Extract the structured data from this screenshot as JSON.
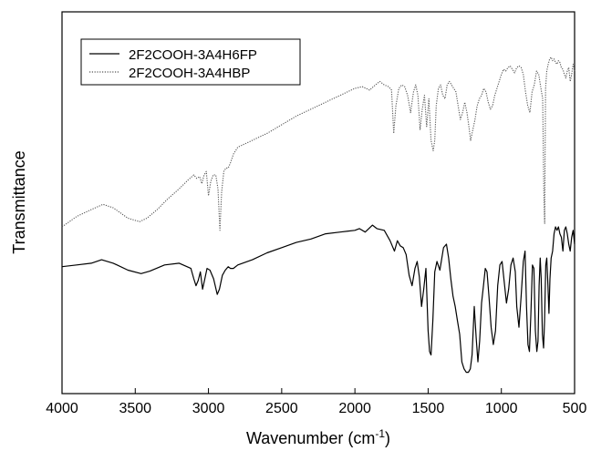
{
  "chart_data": {
    "type": "line",
    "xlabel": "Wavenumber (cm",
    "xlabel_superscript": "-1",
    "xlabel_suffix": ")",
    "ylabel": "Transmittance",
    "xlim": [
      4000,
      500
    ],
    "x_reversed": true,
    "ylim": [
      0,
      1
    ],
    "y_ticks_shown": false,
    "x_ticks": [
      4000,
      3500,
      3000,
      2500,
      2000,
      1500,
      1000,
      500
    ],
    "x_tick_labels": [
      "4000",
      "3500",
      "3000",
      "2500",
      "2000",
      "1500",
      "1000",
      "500"
    ],
    "grid": false,
    "legend": {
      "position": "top-left"
    },
    "series": [
      {
        "name": "2F2COOH-3A4H6FP",
        "style": "solid",
        "color": "#000000",
        "x": [
          4000,
          3900,
          3800,
          3730,
          3650,
          3550,
          3460,
          3400,
          3300,
          3200,
          3120,
          3100,
          3085,
          3070,
          3055,
          3040,
          3025,
          3010,
          2990,
          2965,
          2940,
          2925,
          2905,
          2885,
          2865,
          2850,
          2830,
          2800,
          2700,
          2600,
          2500,
          2400,
          2300,
          2200,
          2100,
          2000,
          1970,
          1930,
          1880,
          1850,
          1800,
          1760,
          1730,
          1710,
          1690,
          1670,
          1650,
          1630,
          1610,
          1590,
          1575,
          1560,
          1545,
          1530,
          1515,
          1500,
          1490,
          1480,
          1468,
          1455,
          1440,
          1420,
          1395,
          1375,
          1360,
          1345,
          1330,
          1315,
          1300,
          1285,
          1270,
          1255,
          1240,
          1225,
          1212,
          1200,
          1185,
          1172,
          1160,
          1148,
          1135,
          1122,
          1110,
          1098,
          1085,
          1070,
          1055,
          1040,
          1025,
          1010,
          995,
          980,
          965,
          950,
          935,
          920,
          905,
          895,
          880,
          865,
          850,
          838,
          828,
          818,
          808,
          798,
          788,
          778,
          768,
          758,
          750,
          742,
          735,
          728,
          720,
          712,
          705,
          697,
          690,
          682,
          675,
          668,
          660,
          650,
          640,
          630,
          620,
          610,
          600,
          590,
          580,
          570,
          560,
          550,
          540,
          530,
          520,
          510,
          500
        ],
        "y": [
          0.335,
          0.34,
          0.345,
          0.355,
          0.345,
          0.325,
          0.315,
          0.322,
          0.34,
          0.345,
          0.33,
          0.3,
          0.28,
          0.295,
          0.32,
          0.27,
          0.3,
          0.33,
          0.325,
          0.3,
          0.255,
          0.27,
          0.31,
          0.325,
          0.335,
          0.33,
          0.33,
          0.34,
          0.355,
          0.375,
          0.39,
          0.405,
          0.415,
          0.43,
          0.435,
          0.44,
          0.445,
          0.435,
          0.455,
          0.445,
          0.44,
          0.41,
          0.38,
          0.41,
          0.395,
          0.39,
          0.37,
          0.31,
          0.28,
          0.33,
          0.35,
          0.305,
          0.22,
          0.27,
          0.33,
          0.15,
          0.09,
          0.08,
          0.18,
          0.32,
          0.35,
          0.325,
          0.39,
          0.4,
          0.36,
          0.3,
          0.25,
          0.22,
          0.18,
          0.14,
          0.06,
          0.04,
          0.03,
          0.03,
          0.04,
          0.08,
          0.22,
          0.13,
          0.06,
          0.12,
          0.23,
          0.28,
          0.33,
          0.32,
          0.25,
          0.16,
          0.11,
          0.15,
          0.28,
          0.34,
          0.35,
          0.29,
          0.23,
          0.27,
          0.34,
          0.36,
          0.32,
          0.22,
          0.16,
          0.25,
          0.35,
          0.38,
          0.22,
          0.11,
          0.09,
          0.2,
          0.34,
          0.33,
          0.15,
          0.09,
          0.12,
          0.28,
          0.36,
          0.3,
          0.14,
          0.1,
          0.18,
          0.34,
          0.36,
          0.28,
          0.2,
          0.3,
          0.36,
          0.38,
          0.43,
          0.45,
          0.44,
          0.45,
          0.43,
          0.42,
          0.38,
          0.44,
          0.45,
          0.43,
          0.4,
          0.38,
          0.42,
          0.44,
          0.4
        ]
      },
      {
        "name": "2F2COOH-3A4HBP",
        "style": "dotted",
        "color": "#555555",
        "x": [
          4000,
          3900,
          3800,
          3720,
          3650,
          3550,
          3470,
          3420,
          3350,
          3280,
          3200,
          3140,
          3100,
          3080,
          3060,
          3045,
          3030,
          3015,
          3000,
          2985,
          2968,
          2950,
          2935,
          2922,
          2910,
          2895,
          2880,
          2865,
          2850,
          2830,
          2800,
          2700,
          2600,
          2500,
          2400,
          2300,
          2200,
          2100,
          2000,
          1950,
          1900,
          1860,
          1830,
          1800,
          1770,
          1750,
          1735,
          1720,
          1700,
          1680,
          1660,
          1640,
          1620,
          1600,
          1585,
          1570,
          1555,
          1540,
          1525,
          1510,
          1495,
          1480,
          1465,
          1455,
          1445,
          1430,
          1415,
          1400,
          1385,
          1370,
          1355,
          1340,
          1325,
          1310,
          1295,
          1280,
          1265,
          1250,
          1235,
          1222,
          1210,
          1195,
          1180,
          1165,
          1150,
          1135,
          1120,
          1105,
          1090,
          1075,
          1060,
          1045,
          1030,
          1015,
          1000,
          985,
          970,
          955,
          940,
          925,
          910,
          895,
          880,
          865,
          850,
          835,
          820,
          805,
          790,
          775,
          760,
          745,
          730,
          718,
          710,
          704,
          698,
          690,
          680,
          670,
          660,
          650,
          640,
          630,
          620,
          610,
          600,
          590,
          580,
          570,
          560,
          550,
          540,
          530,
          520,
          510,
          500
        ],
        "y": [
          0.45,
          0.48,
          0.5,
          0.515,
          0.505,
          0.475,
          0.465,
          0.475,
          0.5,
          0.53,
          0.56,
          0.585,
          0.6,
          0.59,
          0.595,
          0.575,
          0.6,
          0.61,
          0.54,
          0.58,
          0.6,
          0.6,
          0.56,
          0.44,
          0.55,
          0.61,
          0.62,
          0.62,
          0.635,
          0.66,
          0.68,
          0.7,
          0.72,
          0.745,
          0.77,
          0.79,
          0.81,
          0.83,
          0.85,
          0.855,
          0.845,
          0.86,
          0.87,
          0.86,
          0.855,
          0.845,
          0.72,
          0.8,
          0.85,
          0.86,
          0.855,
          0.83,
          0.78,
          0.84,
          0.86,
          0.83,
          0.73,
          0.79,
          0.83,
          0.74,
          0.82,
          0.7,
          0.67,
          0.7,
          0.8,
          0.85,
          0.86,
          0.83,
          0.82,
          0.86,
          0.87,
          0.86,
          0.85,
          0.84,
          0.8,
          0.76,
          0.78,
          0.81,
          0.78,
          0.74,
          0.7,
          0.73,
          0.76,
          0.8,
          0.82,
          0.83,
          0.85,
          0.84,
          0.81,
          0.79,
          0.8,
          0.83,
          0.85,
          0.87,
          0.89,
          0.905,
          0.9,
          0.91,
          0.915,
          0.905,
          0.895,
          0.91,
          0.915,
          0.91,
          0.89,
          0.84,
          0.8,
          0.78,
          0.84,
          0.86,
          0.9,
          0.89,
          0.85,
          0.82,
          0.55,
          0.46,
          0.85,
          0.9,
          0.92,
          0.935,
          0.94,
          0.93,
          0.935,
          0.925,
          0.92,
          0.93,
          0.925,
          0.91,
          0.905,
          0.89,
          0.88,
          0.9,
          0.91,
          0.87,
          0.89,
          0.92,
          0.9
        ]
      }
    ]
  }
}
